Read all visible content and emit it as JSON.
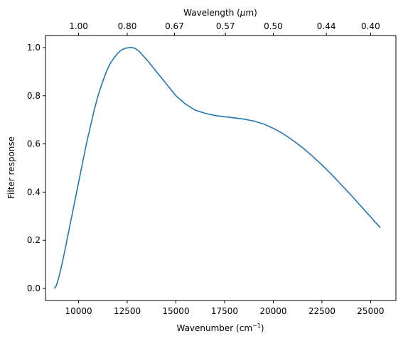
{
  "chart_data": {
    "type": "line",
    "title": "",
    "xlabel": "Wavenumber (cm",
    "xlabel_sup": "−1",
    "xlabel_close": ")",
    "ylabel": "Filter response",
    "top_xlabel": "Wavelength (",
    "top_xlabel_mu": "μ",
    "top_xlabel_tail": "m)",
    "xlim": [
      8300,
      26300
    ],
    "ylim": [
      -0.05,
      1.05
    ],
    "x_ticks": [
      10000,
      12500,
      15000,
      17500,
      20000,
      22500,
      25000
    ],
    "y_ticks": [
      0.0,
      0.2,
      0.4,
      0.6,
      0.8,
      1.0
    ],
    "top_ticks": [
      {
        "label": "1.00",
        "value": 10000
      },
      {
        "label": "0.80",
        "value": 12500
      },
      {
        "label": "0.67",
        "value": 14925
      },
      {
        "label": "0.57",
        "value": 17544
      },
      {
        "label": "0.50",
        "value": 20000
      },
      {
        "label": "0.44",
        "value": 22727
      },
      {
        "label": "0.40",
        "value": 25000
      }
    ],
    "grid": false,
    "line_color": "#1f77b4",
    "series": [
      {
        "x": [
          8750,
          8850,
          9000,
          9200,
          9400,
          9600,
          9800,
          10000,
          10200,
          10400,
          10600,
          10800,
          11000,
          11200,
          11400,
          11600,
          11800,
          12000,
          12200,
          12400,
          12600,
          12750,
          12900,
          13100,
          13300,
          13600,
          14000,
          14500,
          15000,
          15500,
          16000,
          16500,
          17000,
          17500,
          18000,
          18500,
          19000,
          19500,
          20000,
          20500,
          21000,
          21500,
          22000,
          22500,
          23000,
          23500,
          24000,
          24500,
          25000,
          25500
        ],
        "y": [
          0.0,
          0.01,
          0.05,
          0.12,
          0.2,
          0.28,
          0.36,
          0.44,
          0.52,
          0.6,
          0.67,
          0.74,
          0.8,
          0.85,
          0.895,
          0.93,
          0.955,
          0.975,
          0.99,
          0.997,
          1.0,
          1.0,
          0.997,
          0.985,
          0.968,
          0.94,
          0.9,
          0.85,
          0.8,
          0.765,
          0.74,
          0.727,
          0.718,
          0.713,
          0.708,
          0.703,
          0.695,
          0.683,
          0.665,
          0.643,
          0.615,
          0.585,
          0.55,
          0.513,
          0.473,
          0.43,
          0.387,
          0.342,
          0.297,
          0.252
        ]
      }
    ]
  }
}
